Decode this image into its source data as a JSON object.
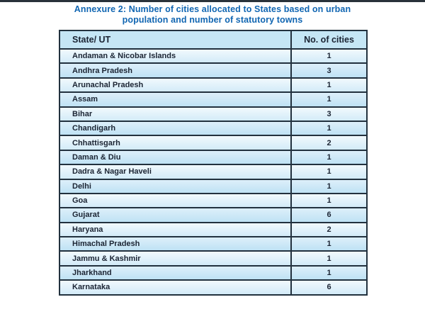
{
  "page": {
    "title_line1": "Annexure 2: Number of cities allocated to States based on urban",
    "title_line2": "population and number of statutory towns"
  },
  "table": {
    "columns": [
      "State/ UT",
      "No. of cities"
    ],
    "rows": [
      {
        "state": "Andaman & Nicobar Islands",
        "cities": "1"
      },
      {
        "state": "Andhra Pradesh",
        "cities": "3"
      },
      {
        "state": "Arunachal Pradesh",
        "cities": "1"
      },
      {
        "state": "Assam",
        "cities": "1"
      },
      {
        "state": "Bihar",
        "cities": "3"
      },
      {
        "state": "Chandigarh",
        "cities": "1"
      },
      {
        "state": "Chhattisgarh",
        "cities": "2"
      },
      {
        "state": "Daman & Diu",
        "cities": "1"
      },
      {
        "state": "Dadra & Nagar Haveli",
        "cities": "1"
      },
      {
        "state": "Delhi",
        "cities": "1"
      },
      {
        "state": "Goa",
        "cities": "1"
      },
      {
        "state": "Gujarat",
        "cities": "6"
      },
      {
        "state": "Haryana",
        "cities": "2"
      },
      {
        "state": "Himachal Pradesh",
        "cities": "1"
      },
      {
        "state": "Jammu & Kashmir",
        "cities": "1"
      },
      {
        "state": "Jharkhand",
        "cities": "1"
      },
      {
        "state": "Karnataka",
        "cities": "6"
      }
    ]
  },
  "colors": {
    "title_blue": "#1166b2",
    "table_border": "#22313e",
    "header_bg": "#c5e6f5",
    "row_light_gradient": [
      "#f1f9fd",
      "#d3ebf8"
    ],
    "row_dark_gradient": [
      "#ddeffa",
      "#bfe2f4"
    ],
    "cell_text": "#1b2433",
    "top_rule": "#29323a"
  }
}
